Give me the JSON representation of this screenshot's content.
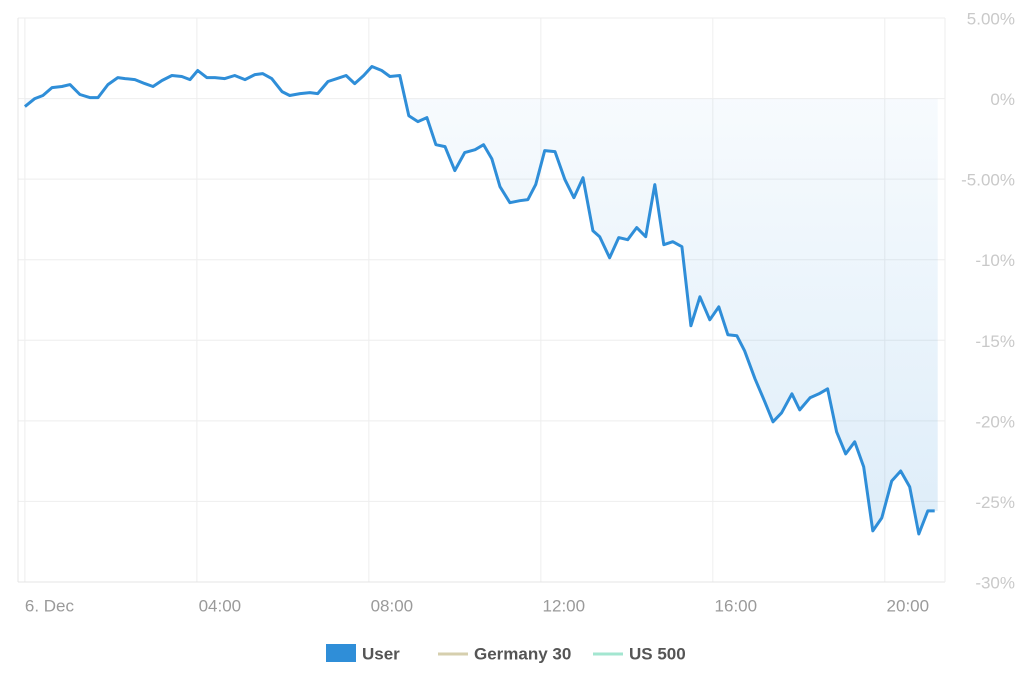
{
  "chart_data": {
    "type": "line",
    "x": [
      0,
      0.23,
      0.42,
      0.63,
      0.86,
      1.05,
      1.28,
      1.51,
      1.7,
      1.93,
      2.16,
      2.33,
      2.56,
      2.79,
      2.98,
      3.19,
      3.42,
      3.65,
      3.84,
      4.02,
      4.23,
      4.42,
      4.65,
      4.88,
      5.12,
      5.35,
      5.53,
      5.74,
      5.98,
      6.16,
      6.4,
      6.63,
      6.81,
      7.05,
      7.26,
      7.47,
      7.67,
      7.88,
      8.07,
      8.3,
      8.49,
      8.72,
      8.93,
      9.14,
      9.35,
      9.56,
      9.77,
      10.0,
      10.23,
      10.47,
      10.67,
      10.86,
      11.05,
      11.28,
      11.51,
      11.7,
      11.88,
      12.09,
      12.33,
      12.56,
      12.77,
      12.98,
      13.21,
      13.37,
      13.6,
      13.81,
      14.02,
      14.23,
      14.44,
      14.65,
      14.86,
      15.07,
      15.28,
      15.49,
      15.7,
      15.93,
      16.14,
      16.35,
      16.56,
      16.74,
      16.98,
      17.21,
      17.4,
      17.6,
      17.84,
      18.02,
      18.26,
      18.47,
      18.67,
      18.88,
      19.09,
      19.3,
      19.51,
      19.72,
      19.93,
      20.16,
      20.37,
      20.58,
      20.79,
      21.0,
      21.16
    ],
    "series": [
      {
        "name": "User",
        "color": "#2f8ed8",
        "values": [
          -0.5,
          0,
          0.19,
          0.68,
          0.75,
          0.87,
          0.25,
          0.06,
          0.06,
          0.87,
          1.3,
          1.24,
          1.18,
          0.93,
          0.75,
          1.12,
          1.43,
          1.37,
          1.18,
          1.74,
          1.3,
          1.3,
          1.24,
          1.43,
          1.18,
          1.49,
          1.55,
          1.24,
          0.43,
          0.19,
          0.31,
          0.37,
          0.31,
          1.06,
          1.24,
          1.43,
          0.93,
          1.43,
          1.99,
          1.74,
          1.37,
          1.43,
          -1.06,
          -1.43,
          -1.18,
          -2.86,
          -2.98,
          -4.47,
          -3.35,
          -3.17,
          -2.86,
          -3.73,
          -5.47,
          -6.46,
          -6.34,
          -6.27,
          -5.34,
          -3.23,
          -3.29,
          -5.03,
          -6.15,
          -4.91,
          -8.2,
          -8.57,
          -9.88,
          -8.63,
          -8.76,
          -8.01,
          -8.57,
          -5.34,
          -9.07,
          -8.88,
          -9.19,
          -14.1,
          -12.3,
          -13.73,
          -12.92,
          -14.66,
          -14.72,
          -15.65,
          -17.39,
          -18.82,
          -20.06,
          -19.5,
          -18.32,
          -19.32,
          -18.57,
          -18.32,
          -18.01,
          -20.68,
          -22.05,
          -21.3,
          -22.86,
          -26.83,
          -26.02,
          -23.73,
          -23.11,
          -24.1,
          -27.02,
          -25.59,
          -25.59
        ]
      }
    ],
    "hidden_series": [
      {
        "name": "Germany 30",
        "color": "#d6cfae"
      },
      {
        "name": "US 500",
        "color": "#a3e6d0"
      }
    ],
    "xlim": [
      -0.16,
      21.4
    ],
    "xticks": [
      {
        "value": 0,
        "label": "6. Dec"
      },
      {
        "value": 4,
        "label": "04:00"
      },
      {
        "value": 8,
        "label": "08:00"
      },
      {
        "value": 12,
        "label": "12:00"
      },
      {
        "value": 16,
        "label": "16:00"
      },
      {
        "value": 20,
        "label": "20:00"
      }
    ],
    "ylim": [
      -30,
      5
    ],
    "yticks": [
      {
        "value": 5,
        "label": "5.00%"
      },
      {
        "value": 0,
        "label": "0%"
      },
      {
        "value": -5,
        "label": "-5.00%"
      },
      {
        "value": -10,
        "label": "-10%"
      },
      {
        "value": -15,
        "label": "-15%"
      },
      {
        "value": -20,
        "label": "-20%"
      },
      {
        "value": -25,
        "label": "-25%"
      },
      {
        "value": -30,
        "label": "-30%"
      }
    ],
    "grid": true
  }
}
